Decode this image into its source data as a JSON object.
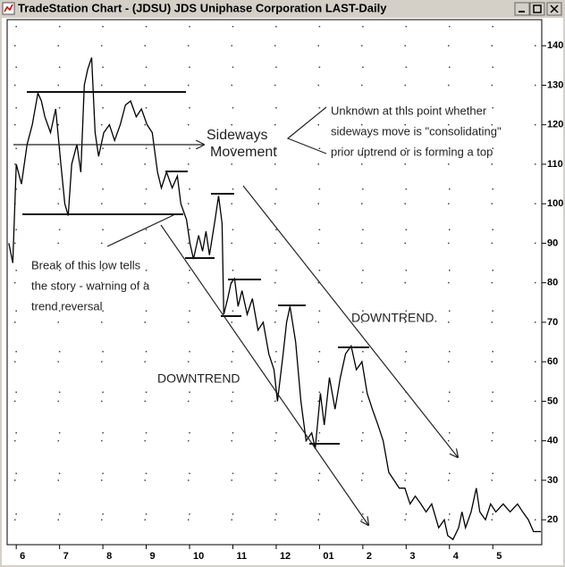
{
  "chart_data": {
    "type": "line",
    "title": "TradeStation Chart - (JDSU) JDS Uniphase Corporation LAST-Daily",
    "color": "#000000",
    "grid": true,
    "x": [
      -0.17,
      -0.08,
      0,
      0.12,
      0.25,
      0.37,
      0.5,
      0.58,
      0.66,
      0.79,
      0.91,
      1.03,
      1.12,
      1.2,
      1.28,
      1.4,
      1.49,
      1.57,
      1.65,
      1.74,
      1.82,
      1.9,
      2.02,
      2.15,
      2.27,
      2.4,
      2.52,
      2.64,
      2.77,
      2.89,
      3.02,
      3.14,
      3.26,
      3.35,
      3.47,
      3.6,
      3.72,
      3.8,
      3.93,
      4.01,
      4.09,
      4.21,
      4.3,
      4.38,
      4.46,
      4.59,
      4.67,
      4.75,
      4.79,
      4.88,
      4.96,
      5.04,
      5.12,
      5.21,
      5.33,
      5.45,
      5.58,
      5.7,
      5.83,
      5.95,
      6.03,
      6.16,
      6.24,
      6.32,
      6.45,
      6.57,
      6.69,
      6.82,
      6.9,
      7.02,
      7.11,
      7.23,
      7.36,
      7.48,
      7.6,
      7.73,
      7.85,
      7.98,
      8.1,
      8.22,
      8.35,
      8.47,
      8.6,
      8.72,
      8.84,
      8.97,
      9.09,
      9.21,
      9.34,
      9.46,
      9.59,
      9.75,
      9.88,
      9.96,
      10.08,
      10.21,
      10.29,
      10.37,
      10.5,
      10.62,
      10.7,
      10.83,
      10.95,
      11.07,
      11.24,
      11.4,
      11.57,
      11.69,
      11.82,
      11.94,
      12.11
    ],
    "values": [
      90,
      85,
      110,
      105,
      115,
      120,
      128,
      126,
      122,
      118,
      124,
      110,
      100,
      97,
      110,
      115,
      108,
      130,
      134,
      137,
      118,
      112,
      118,
      120,
      116,
      120,
      125,
      126,
      122,
      124,
      120,
      118,
      108,
      104,
      108,
      104,
      107,
      100,
      96,
      90,
      86,
      92,
      88,
      93,
      87,
      96,
      102,
      95,
      72,
      76,
      80,
      81,
      74,
      78,
      72,
      76,
      68,
      70,
      62,
      58,
      50,
      62,
      70,
      74,
      65,
      50,
      40,
      42,
      38,
      52,
      44,
      56,
      48,
      56,
      62,
      64,
      58,
      60,
      52,
      48,
      44,
      40,
      32,
      30,
      28,
      28,
      24,
      26,
      24,
      22,
      24,
      18,
      20,
      16,
      15,
      18,
      22,
      18,
      22,
      28,
      22,
      20,
      24,
      22,
      24,
      22,
      24,
      22,
      20,
      17,
      17
    ],
    "xlim": [
      -0.21,
      12.13
    ],
    "xticks": [
      {
        "value": 0,
        "label": "6"
      },
      {
        "value": 1,
        "label": "7"
      },
      {
        "value": 2,
        "label": "8"
      },
      {
        "value": 3,
        "label": "9"
      },
      {
        "value": 4,
        "label": "10"
      },
      {
        "value": 5,
        "label": "11"
      },
      {
        "value": 6,
        "label": "12"
      },
      {
        "value": 7,
        "label": "01"
      },
      {
        "value": 8,
        "label": "2"
      },
      {
        "value": 9,
        "label": "3"
      },
      {
        "value": 10,
        "label": "4"
      },
      {
        "value": 11,
        "label": "5"
      }
    ],
    "ylim": [
      13.7,
      146.6
    ],
    "yticks": [
      20,
      30,
      40,
      50,
      60,
      70,
      80,
      90,
      100,
      110,
      120,
      130,
      140
    ],
    "annotations": {
      "sideways": [
        "Sideways",
        "Movement"
      ],
      "unknown": [
        "Unknown at this point whether",
        "sideways move is \"consolidating\"",
        "prior uptrend or is forming a top"
      ],
      "break": [
        "Break of this low tells",
        "the story - warning of a",
        "trend reversal"
      ],
      "downtrend_upper": "DOWNTREND.",
      "downtrend_lower": "DOWNTREND"
    }
  }
}
